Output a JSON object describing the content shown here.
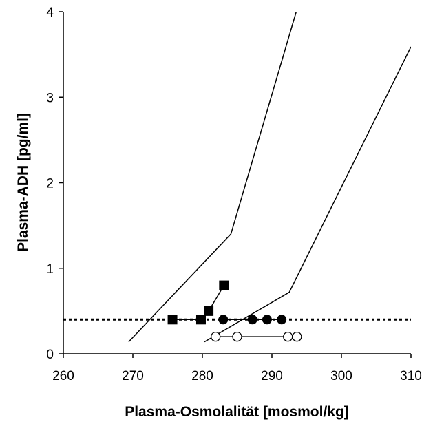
{
  "chart_data": {
    "type": "line",
    "x_label": "Plasma-Osmolalität [mosmol/kg]",
    "y_label": "Plasma-ADH [pg/ml]",
    "xlim": [
      260,
      310
    ],
    "xticks": [
      260,
      270,
      280,
      290,
      300,
      310
    ],
    "ylim": [
      0,
      4
    ],
    "yticks": [
      0,
      1,
      2,
      3,
      4
    ],
    "series": [
      {
        "color": "#000000",
        "marker": "none",
        "dash": "solid",
        "x": [
          269.4,
          284.1,
          293.5
        ],
        "values": [
          0.14,
          1.4,
          4
        ]
      },
      {
        "color": "#000000",
        "marker": "none",
        "dash": "solid",
        "x": [
          280.3,
          292.5,
          310
        ],
        "values": [
          0.14,
          0.72,
          3.59
        ]
      },
      {
        "color": "#000000",
        "marker": "none",
        "dash": "dotted",
        "x": [
          260,
          310
        ],
        "values": [
          0.4,
          0.4
        ]
      },
      {
        "color": "#000000",
        "marker": "square",
        "dash": "solid",
        "x": [
          275.7,
          279.8,
          280.9,
          283.1
        ],
        "values": [
          0.4,
          0.4,
          0.5,
          0.8
        ]
      },
      {
        "color": "#000000",
        "marker": "circle",
        "dash": "solid",
        "x": [
          283,
          287.2,
          289.3,
          291.4
        ],
        "values": [
          0.4,
          0.4,
          0.4,
          0.4
        ]
      },
      {
        "color": "#000000",
        "marker": "open-circle",
        "dash": "solid",
        "x": [
          281.9,
          285,
          292.3,
          293.6
        ],
        "values": [
          0.2,
          0.2,
          0.2,
          0.2
        ]
      }
    ]
  }
}
